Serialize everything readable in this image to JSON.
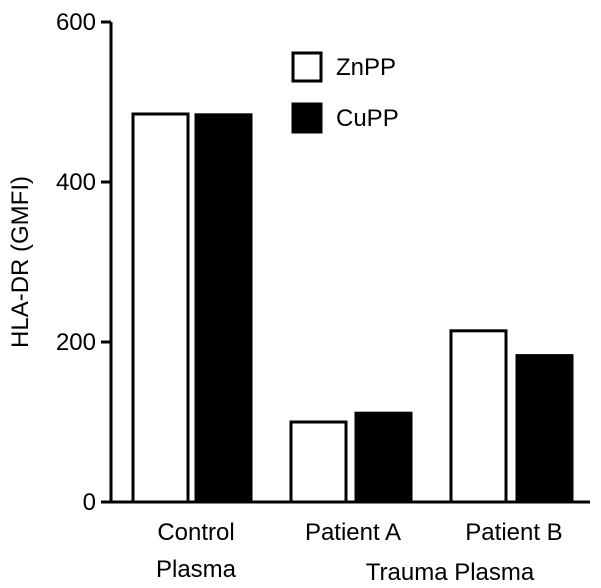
{
  "chart_data": {
    "type": "bar",
    "title": "",
    "xlabel": "",
    "ylabel": "HLA-DR (GMFI)",
    "ylim": [
      0,
      600
    ],
    "yticks": [
      "0",
      "200",
      "400",
      "600"
    ],
    "categories": [
      [
        "Control",
        "Plasma"
      ],
      [
        "Patient A"
      ],
      [
        "Patient B"
      ]
    ],
    "group_label": "Trauma Plasma",
    "series": [
      {
        "name": "ZnPP",
        "values": [
          485,
          100,
          214
        ],
        "fill": "#ffffff",
        "stroke": "#000000"
      },
      {
        "name": "CuPP",
        "values": [
          484,
          111,
          183
        ],
        "fill": "#000000",
        "stroke": "#000000"
      }
    ],
    "legend_position": "top-right",
    "grid": false
  }
}
